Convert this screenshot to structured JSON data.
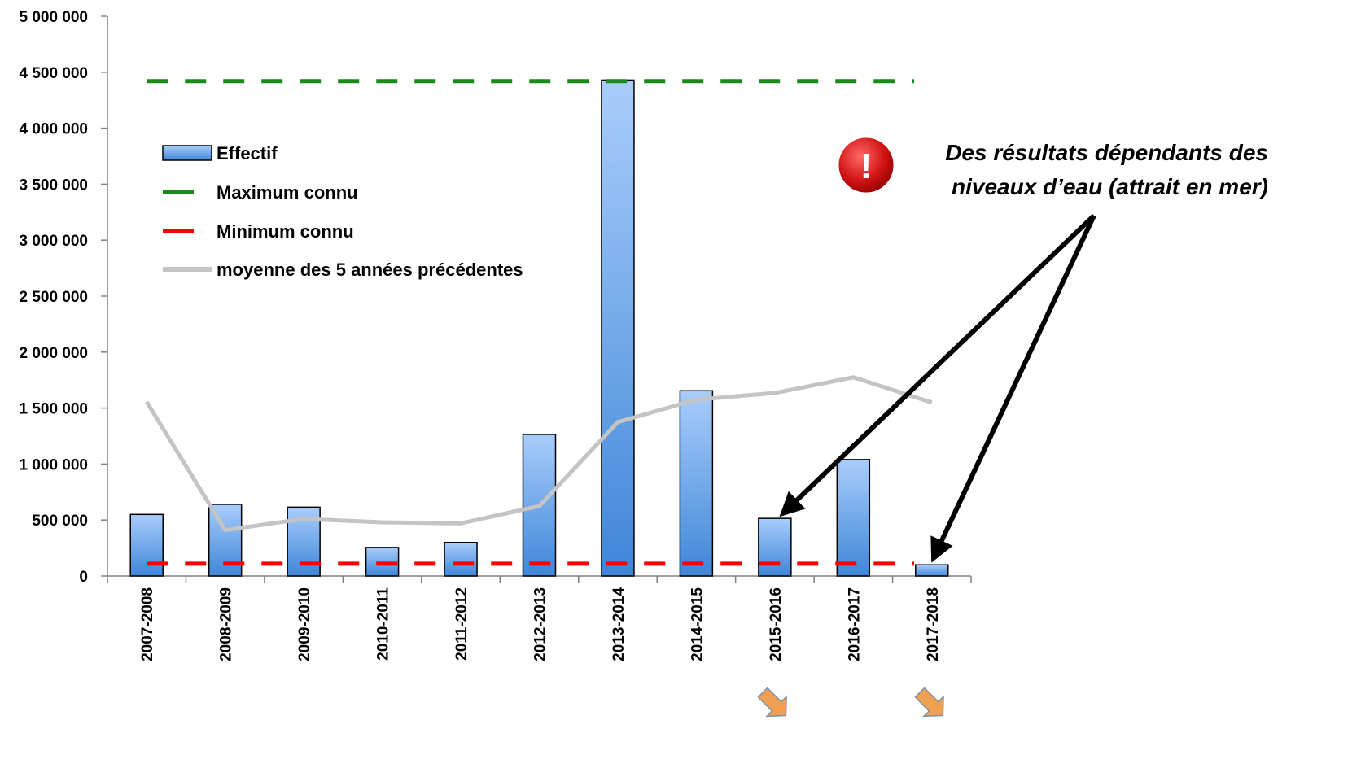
{
  "chart_data": {
    "type": "bar",
    "categories": [
      "2007-2008",
      "2008-2009",
      "2009-2010",
      "2010-2011",
      "2011-2012",
      "2012-2013",
      "2013-2014",
      "2014-2015",
      "2015-2016",
      "2016-2017",
      "2017-2018"
    ],
    "series": [
      {
        "name": "Effectif",
        "type": "bar",
        "values": [
          550000,
          640000,
          615000,
          255000,
          300000,
          1265000,
          4430000,
          1655000,
          515000,
          1040000,
          100000
        ]
      },
      {
        "name": "moyenne des 5 années précédentes",
        "type": "line",
        "values": [
          1555000,
          410000,
          510000,
          480000,
          470000,
          625000,
          1375000,
          1575000,
          1635000,
          1775000,
          1550000
        ]
      }
    ],
    "reference_lines": [
      {
        "name": "Maximum connu",
        "value": 4420000,
        "color": "#1a8a1a",
        "style": "dashed"
      },
      {
        "name": "Minimum connu",
        "value": 110000,
        "color": "#ff0000",
        "style": "dashed"
      }
    ],
    "ylim": [
      0,
      5000000
    ],
    "yticks": [
      "0",
      "500 000",
      "1 000 000",
      "1 500 000",
      "2 000 000",
      "2 500 000",
      "3 000 000",
      "3 500 000",
      "4 000 000",
      "4 500 000",
      "5 000 000"
    ],
    "legend": {
      "position": "top-left",
      "entries": [
        "Effectif",
        "Maximum connu",
        "Minimum connu",
        "moyenne des 5 années précédentes"
      ]
    },
    "annotation": {
      "lines": [
        "Des résultats dépendants des",
        "niveaux d’eau (attrait en mer)"
      ],
      "icon": "exclamation-warning-icon",
      "targets": [
        "2015-2016",
        "2017-2018"
      ]
    },
    "trend_markers": {
      "icon": "down-arrow-icon",
      "categories": [
        "2015-2016",
        "2017-2018"
      ]
    },
    "grid": false,
    "colors": {
      "bar_top": "#a9cdfb",
      "bar_bottom": "#3f86d8",
      "bar_stroke": "#000000",
      "average_line": "#c4c4c4",
      "axis": "#808080",
      "trend_arrow": "#f0a050"
    }
  }
}
